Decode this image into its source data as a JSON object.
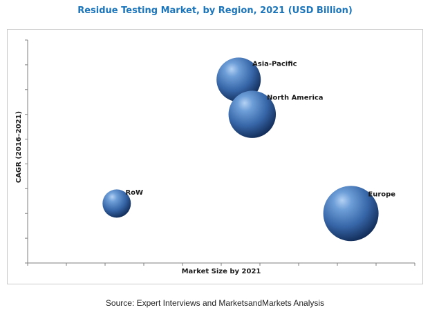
{
  "chart_data": {
    "type": "scatter",
    "subtype": "bubble",
    "title": "Residue Testing Market, by Region, 2021 (USD Billion)",
    "xlabel": "Market Size by 2021",
    "ylabel": "CAGR (2016–2021)",
    "xlim": [
      0,
      10
    ],
    "ylim": [
      0,
      9
    ],
    "x_ticks": 10,
    "y_ticks": 9,
    "grid": false,
    "legend": "none",
    "axis_tick_labels": false,
    "bubble_color": "#3f72b5",
    "points": [
      {
        "label": "Asia-Pacific",
        "x": 5.45,
        "y": 7.4,
        "size": 1.0
      },
      {
        "label": "North America",
        "x": 5.8,
        "y": 6.0,
        "size": 1.07
      },
      {
        "label": "RoW",
        "x": 2.3,
        "y": 2.4,
        "size": 0.64
      },
      {
        "label": "Europe",
        "x": 8.35,
        "y": 2.0,
        "size": 1.25
      }
    ]
  },
  "source": "Source: Expert Interviews and MarketsandMarkets Analysis"
}
